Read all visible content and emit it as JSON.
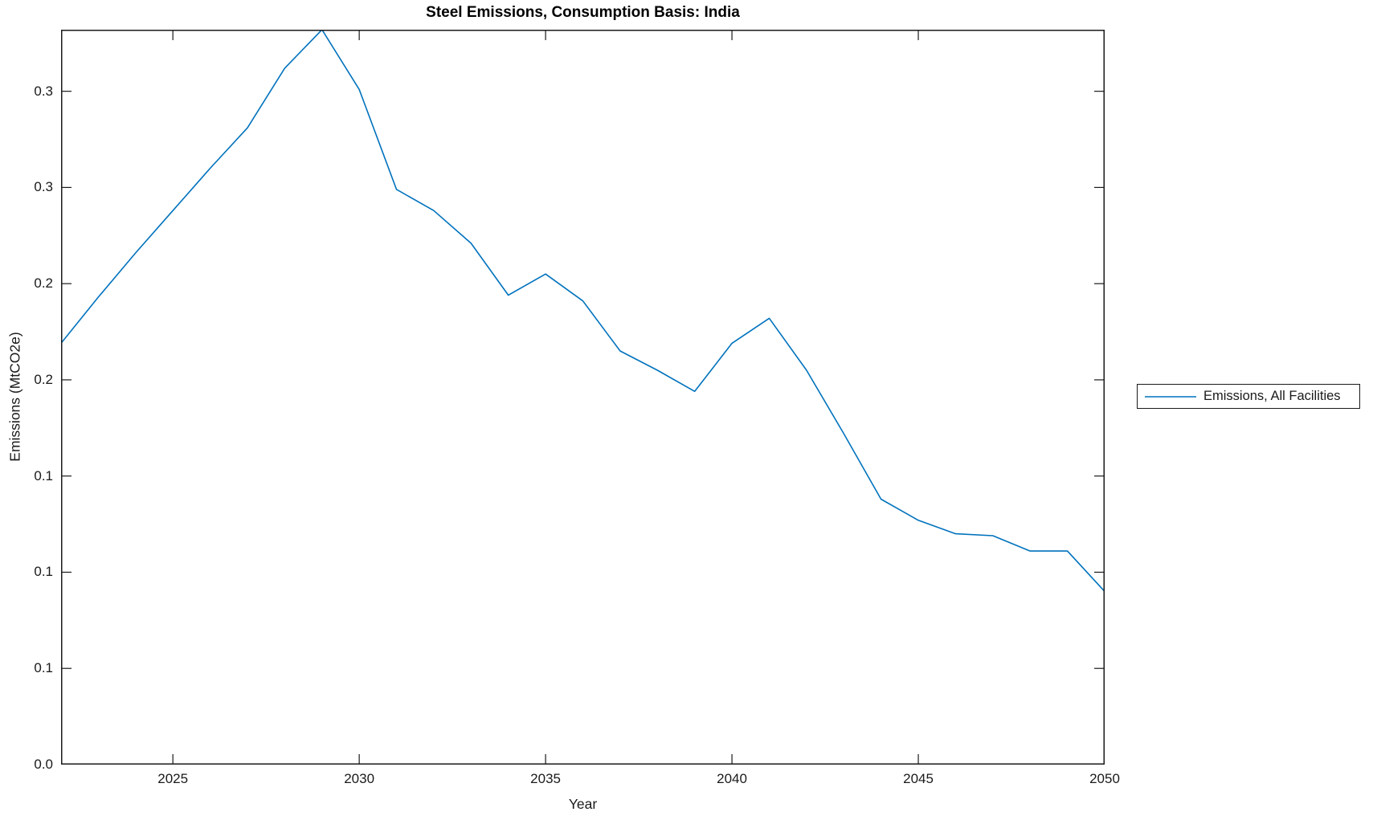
{
  "chart_data": {
    "type": "line",
    "title": "Steel Emissions, Consumption Basis: India",
    "xlabel": "Year",
    "ylabel": "Emissions (MtCO2e)",
    "grid": false,
    "legend_position": "right-outside",
    "legend": [
      {
        "label": "Emissions, All Facilities",
        "color": "#0072BD"
      }
    ],
    "xlim": [
      2022,
      2050
    ],
    "ylim": [
      0,
      0.382
    ],
    "x_ticks": [
      {
        "value": 2025,
        "label": "2025"
      },
      {
        "value": 2030,
        "label": "2030"
      },
      {
        "value": 2035,
        "label": "2035"
      },
      {
        "value": 2040,
        "label": "2040"
      },
      {
        "value": 2045,
        "label": "2045"
      },
      {
        "value": 2050,
        "label": "2050"
      }
    ],
    "y_ticks": [
      {
        "value": 0.0,
        "label": "0.0"
      },
      {
        "value": 0.05,
        "label": "0.1"
      },
      {
        "value": 0.1,
        "label": "0.1"
      },
      {
        "value": 0.15,
        "label": "0.1"
      },
      {
        "value": 0.2,
        "label": "0.2"
      },
      {
        "value": 0.25,
        "label": "0.2"
      },
      {
        "value": 0.3,
        "label": "0.3"
      },
      {
        "value": 0.35,
        "label": "0.3"
      }
    ],
    "x": [
      2022,
      2023,
      2024,
      2025,
      2026,
      2027,
      2028,
      2029,
      2030,
      2031,
      2032,
      2033,
      2034,
      2035,
      2036,
      2037,
      2038,
      2039,
      2040,
      2041,
      2042,
      2043,
      2044,
      2045,
      2046,
      2047,
      2048,
      2049,
      2050
    ],
    "series": [
      {
        "name": "Emissions, All Facilities",
        "color": "#0072BD",
        "values": [
          0.219,
          0.243,
          0.266,
          0.288,
          0.31,
          0.331,
          0.362,
          0.382,
          0.351,
          0.299,
          0.288,
          0.271,
          0.244,
          0.255,
          0.241,
          0.215,
          0.205,
          0.194,
          0.219,
          0.232,
          0.205,
          0.172,
          0.138,
          0.127,
          0.12,
          0.119,
          0.111,
          0.111,
          0.09
        ]
      }
    ],
    "axis_color": "#1a1a1a",
    "background_color": "#ffffff"
  }
}
